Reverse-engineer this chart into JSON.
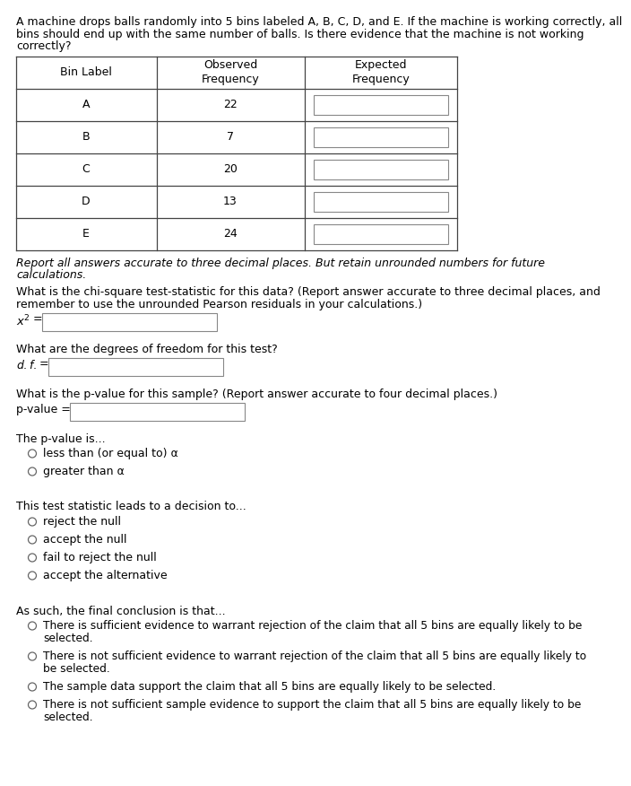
{
  "intro_text_lines": [
    "A machine drops balls randomly into 5 bins labeled A, B, C, D, and E. If the machine is working correctly, all",
    "bins should end up with the same number of balls. Is there evidence that the machine is not working",
    "correctly?"
  ],
  "table_headers": [
    "Bin Label",
    "Observed\nFrequency",
    "Expected\nFrequency"
  ],
  "bins": [
    "A",
    "B",
    "C",
    "D",
    "E"
  ],
  "observed": [
    22,
    7,
    20,
    13,
    24
  ],
  "italic_note_lines": [
    "Report all answers accurate to three decimal places. But retain unrounded numbers for future",
    "calculations."
  ],
  "chi_sq_label_lines": [
    "What is the chi-square test-statistic for this data? (Report answer accurate to three decimal places, and",
    "remember to use the unrounded Pearson residuals in your calculations.)"
  ],
  "df_label": "What are the degrees of freedom for this test?",
  "pval_label": "What is the p-value for this sample? (Report answer accurate to four decimal places.)",
  "pval_is_label": "The p-value is...",
  "pval_options": [
    "less than (or equal to) α",
    "greater than α"
  ],
  "decision_label": "This test statistic leads to a decision to...",
  "decision_options": [
    "reject the null",
    "accept the null",
    "fail to reject the null",
    "accept the alternative"
  ],
  "conclusion_label": "As such, the final conclusion is that...",
  "conclusion_options": [
    [
      "There is sufficient evidence to warrant rejection of the claim that all 5 bins are equally likely to be",
      "selected."
    ],
    [
      "There is not sufficient evidence to warrant rejection of the claim that all 5 bins are equally likely to",
      "be selected."
    ],
    [
      "The sample data support the claim that all 5 bins are equally likely to be selected."
    ],
    [
      "There is not sufficient sample evidence to support the claim that all 5 bins are equally likely to be",
      "selected."
    ]
  ],
  "bg_color": "#ffffff",
  "text_color": "#000000",
  "font_size": 9.0,
  "small_font": 8.8
}
